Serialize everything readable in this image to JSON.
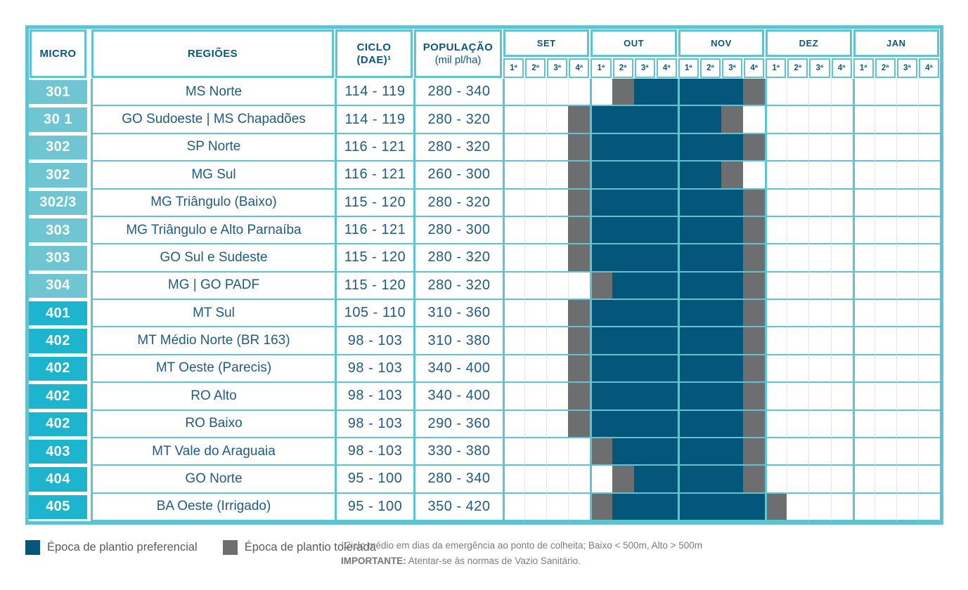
{
  "table": {
    "headers": {
      "micro": "MICRO",
      "regions": "REGIÕES",
      "ciclo_line1": "CICLO",
      "ciclo_line2": "(DAE)¹",
      "populacao_line1": "POPULAÇÃO",
      "populacao_line2": "(mil pl/ha)"
    },
    "months": [
      "SET",
      "OUT",
      "NOV",
      "DEZ",
      "JAN"
    ],
    "weeks": [
      "1ª",
      "2ª",
      "3ª",
      "4ª"
    ],
    "cal_legend_codes": {
      ".": "empty",
      "T": "tolerada",
      "P": "preferencial"
    },
    "rows": [
      {
        "micro": "301",
        "group": 3,
        "region": "MS Norte",
        "ciclo": "114 - 119",
        "pop": "280 - 340",
        "cal": ".....TPPPPPT........"
      },
      {
        "micro": "30 1",
        "group": 3,
        "region": "GO Sudoeste | MS Chapadões",
        "ciclo": "114 - 119",
        "pop": "280 - 320",
        "cal": "...TPPPPPPT........."
      },
      {
        "micro": "302",
        "group": 3,
        "region": "SP Norte",
        "ciclo": "116 - 121",
        "pop": "280 - 320",
        "cal": "...TPPPPPPPT........"
      },
      {
        "micro": "302",
        "group": 3,
        "region": "MG Sul",
        "ciclo": "116 - 121",
        "pop": "260 - 300",
        "cal": "...TPPPPPPT........."
      },
      {
        "micro": "302/3",
        "group": 3,
        "region": "MG Triângulo (Baixo)",
        "ciclo": "115 - 120",
        "pop": "280 - 320",
        "cal": "...TPPPPPPPT........"
      },
      {
        "micro": "303",
        "group": 3,
        "region": "MG Triângulo e Alto Parnaíba",
        "ciclo": "116 - 121",
        "pop": "280 - 300",
        "cal": "...TPPPPPPPT........"
      },
      {
        "micro": "303",
        "group": 3,
        "region": "GO Sul e Sudeste",
        "ciclo": "115 - 120",
        "pop": "280 - 320",
        "cal": "...TPPPPPPPT........"
      },
      {
        "micro": "304",
        "group": 3,
        "region": "MG | GO PADF",
        "ciclo": "115 - 120",
        "pop": "280 - 320",
        "cal": "....TPPPPPPT........"
      },
      {
        "micro": "401",
        "group": 4,
        "region": "MT Sul",
        "ciclo": "105 - 110",
        "pop": "310 - 360",
        "cal": "...TPPPPPPPT........"
      },
      {
        "micro": "402",
        "group": 4,
        "region": "MT Médio Norte (BR 163)",
        "ciclo": "98 - 103",
        "pop": "310 - 380",
        "cal": "...TPPPPPPPT........"
      },
      {
        "micro": "402",
        "group": 4,
        "region": "MT Oeste (Parecis)",
        "ciclo": "98 - 103",
        "pop": "340 - 400",
        "cal": "...TPPPPPPPT........"
      },
      {
        "micro": "402",
        "group": 4,
        "region": "RO Alto",
        "ciclo": "98 - 103",
        "pop": "340 - 400",
        "cal": "...TPPPPPPPT........"
      },
      {
        "micro": "402",
        "group": 4,
        "region": "RO Baixo",
        "ciclo": "98 - 103",
        "pop": "290 - 360",
        "cal": "...TPPPPPPPT........"
      },
      {
        "micro": "403",
        "group": 4,
        "region": "MT Vale do Araguaia",
        "ciclo": "98 - 103",
        "pop": "330 - 380",
        "cal": "....TPPPPPPT........"
      },
      {
        "micro": "404",
        "group": 4,
        "region": "GO Norte",
        "ciclo": "95 - 100",
        "pop": "280 - 340",
        "cal": ".....TPPPPPT........"
      },
      {
        "micro": "405",
        "group": 4,
        "region": "BA Oeste (Irrigado)",
        "ciclo": "95 - 100",
        "pop": "350 - 420",
        "cal": "....TPPPPPPPT......."
      }
    ]
  },
  "legend": {
    "items": [
      {
        "label": "Época de plantio preferencial",
        "color": "#04567b"
      },
      {
        "label": "Época de plantio tolerada",
        "color": "#6d6e70"
      }
    ]
  },
  "footnotes": {
    "line1": "¹Ciclo médio em dias da emergência ao ponto de colheita; Baixo < 500m, Alto > 500m",
    "line2_bold": "IMPORTANTE:",
    "line2_rest": " Atentar-se às normas de Vazio Sanitário."
  },
  "colors": {
    "frame": "#5fc3d1",
    "preferencial": "#04567b",
    "tolerada": "#6d6e70",
    "micro_group_300": "#6fc6d2",
    "micro_group_400": "#1db4ce",
    "header_text": "#0a5880",
    "data_text": "#1e5c80"
  }
}
